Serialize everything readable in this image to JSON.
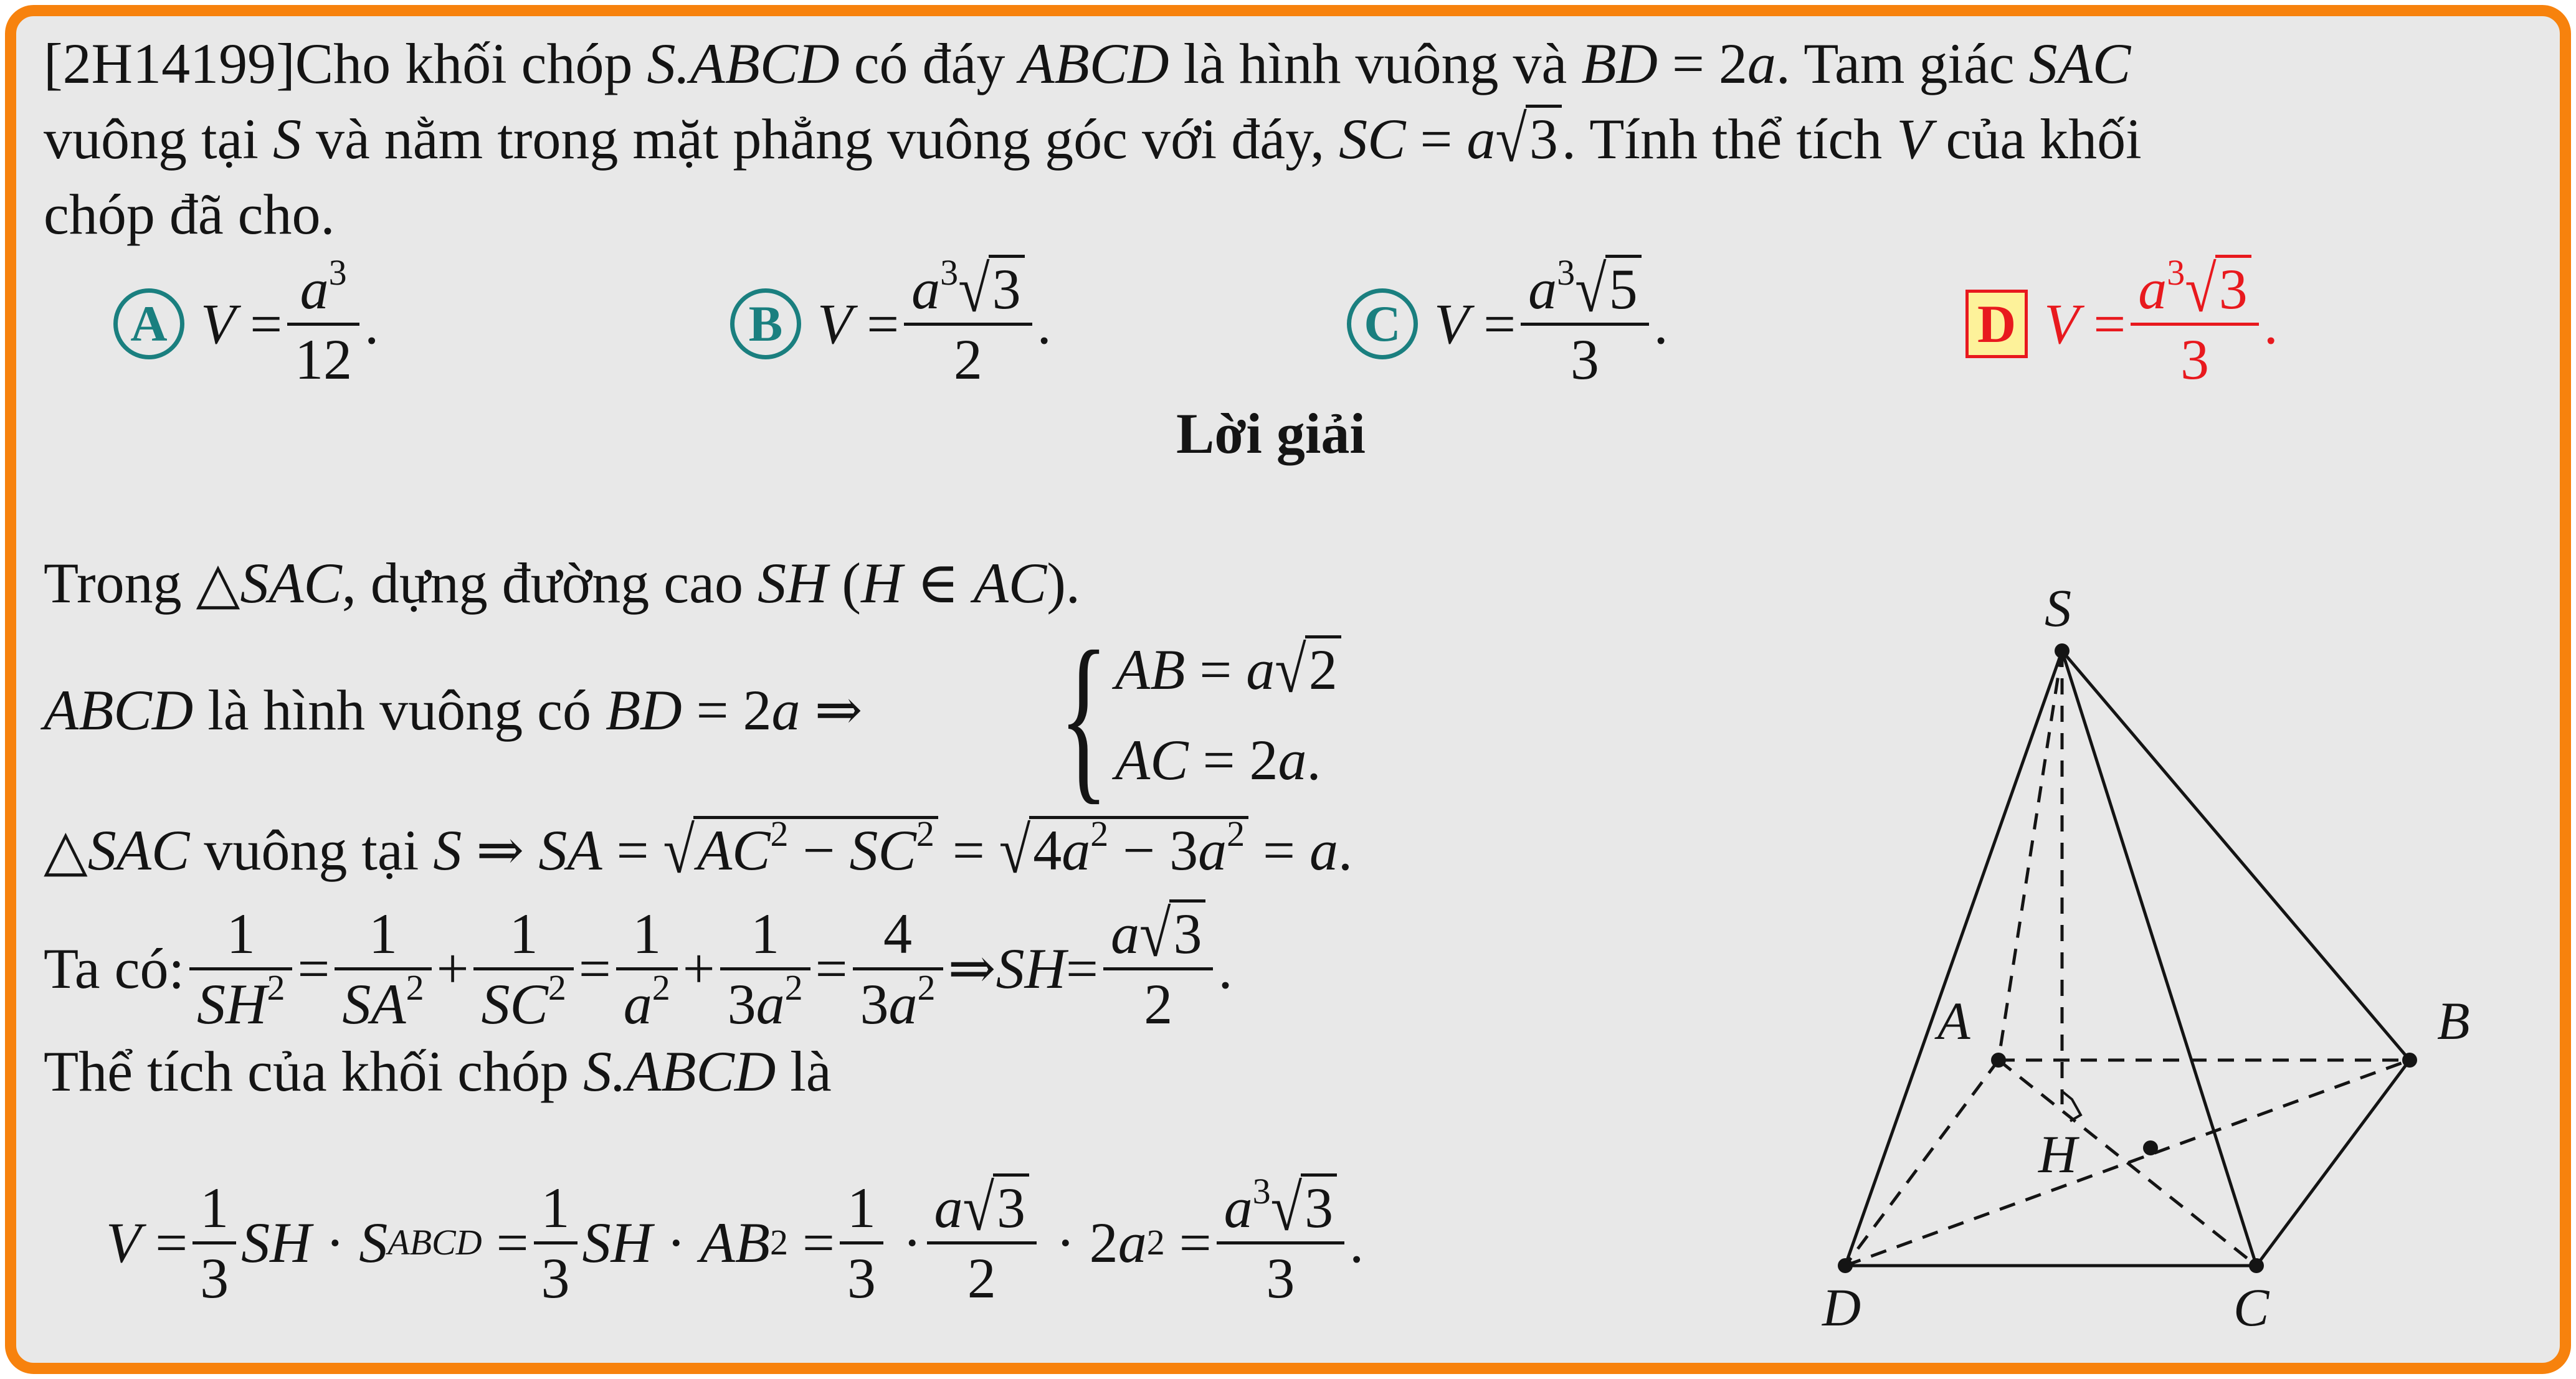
{
  "question": {
    "code": "[2H14199]",
    "line1_text": "Cho khối chóp S.ABCD có đáy ABCD là hình vuông và BD = 2a. Tam giác SAC",
    "line2_text": "vuông tại S và nằm trong mặt phẳng vuông góc với đáy, SC = a√3. Tính thể tích V của khối",
    "line3_text": "chóp đã cho."
  },
  "options": [
    {
      "letter": "A",
      "lhs": "V =",
      "num": "a³",
      "den": "12",
      "correct": false
    },
    {
      "letter": "B",
      "lhs": "V =",
      "num": "a³√3",
      "den": "2",
      "correct": false
    },
    {
      "letter": "C",
      "lhs": "V =",
      "num": "a³√5",
      "den": "3",
      "correct": false
    },
    {
      "letter": "D",
      "lhs": "V =",
      "num": "a³√3",
      "den": "3",
      "correct": true
    }
  ],
  "solution": {
    "heading": "Lời giải",
    "step1": "Trong △SAC, dựng đường cao SH (H ∈ AC).",
    "step2_left": "ABCD là hình vuông có BD = 2a ⇒",
    "step2_case1": "AB = a√2",
    "step2_case2": "AC = 2a.",
    "step3": "△SAC vuông tại S ⇒ SA = √(AC² − SC²) = √(4a² − 3a²) = a.",
    "step4": "Ta có: 1/SH² = 1/SA² + 1/SC² = 1/a² + 1/3a² = 4/3a² ⇒ SH = a√3/2.",
    "step5": "Thể tích của khối chóp S.ABCD là",
    "final": "V = 1/3 SH · S_ABCD = 1/3 SH · AB² = 1/3 · a√3/2 · 2a² = a³√3/3."
  },
  "figure": {
    "labels": {
      "S": "S",
      "A": "A",
      "B": "B",
      "C": "C",
      "D": "D",
      "H": "H"
    }
  },
  "colors": {
    "border": "#f7820d",
    "background": "#e8e8e8",
    "option_teal": "#1a7f7f",
    "answer_red": "#e8191e",
    "answer_box": "#fdf29a"
  }
}
